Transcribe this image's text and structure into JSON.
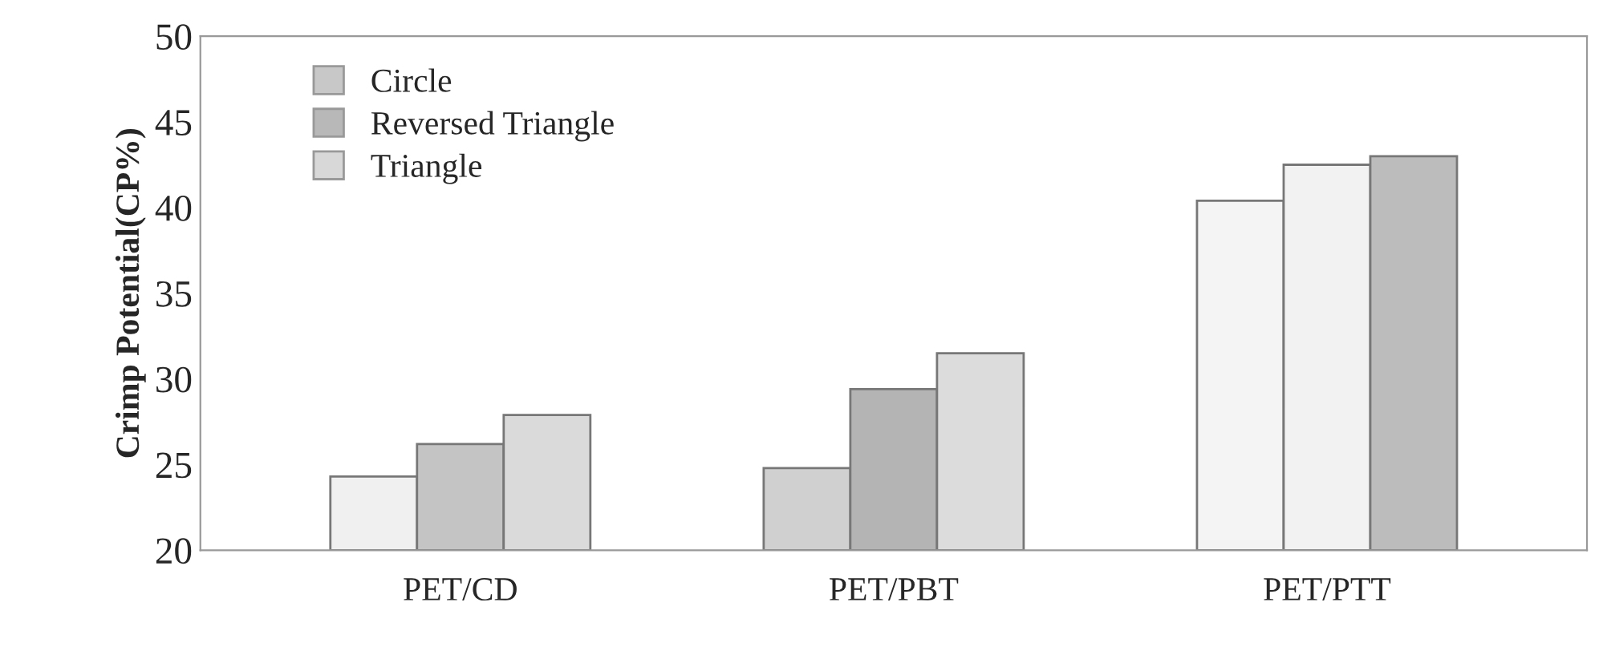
{
  "chart_data": {
    "type": "bar",
    "ylabel": "Crimp Potential(CP%)",
    "categories": [
      "PET/CD",
      "PET/PBT",
      "PET/PTT"
    ],
    "series": [
      {
        "name": "Circle",
        "color": "#c8c8c8",
        "colors": [
          "#f0f0f0",
          "#d0d0d0",
          "#f4f4f4"
        ],
        "values": [
          24.3,
          24.8,
          40.4
        ]
      },
      {
        "name": "Reversed Triangle",
        "color": "#b8b8b8",
        "colors": [
          "#c4c4c4",
          "#b4b4b4",
          "#f2f2f2"
        ],
        "values": [
          26.2,
          29.4,
          42.5
        ]
      },
      {
        "name": "Triangle",
        "color": "#d8d8d8",
        "colors": [
          "#dadada",
          "#dcdcdc",
          "#bcbcbc"
        ],
        "values": [
          27.9,
          31.5,
          43.0
        ]
      }
    ],
    "ylim": [
      20,
      50
    ],
    "yticks": [
      20,
      25,
      30,
      35,
      40,
      45,
      50
    ],
    "grid": false,
    "legend": "top left"
  }
}
